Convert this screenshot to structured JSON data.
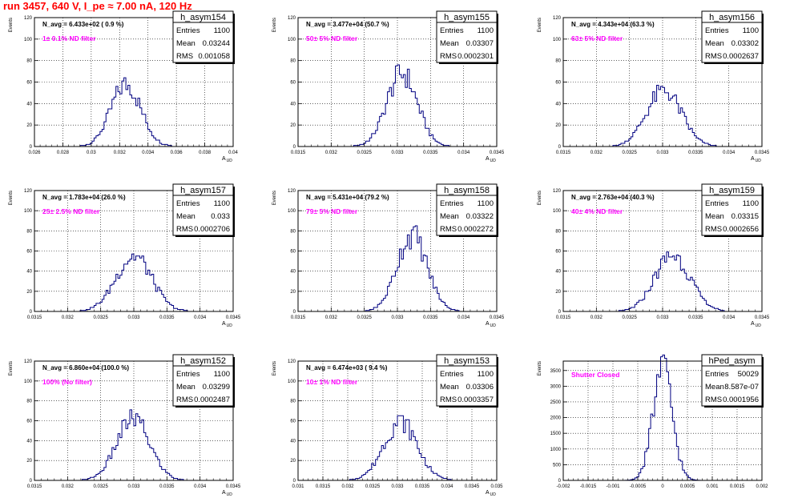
{
  "run_title": "run 3457,   640 V, I_pe ≈ 7.00 nA, 120 Hz",
  "colors": {
    "hist": "#000080",
    "title": "#ff0000",
    "note": "#ff00ff",
    "grid": "#000000"
  },
  "chart_data": [
    {
      "type": "histogram",
      "name": "h_asym154",
      "ylabel": "Events",
      "xlabel": "A_UD",
      "navg": "N_avg = 6.433e+02 ( 0.9 %)",
      "note": "1± 0.1% ND filter",
      "stats": {
        "entries": "1100",
        "mean": "0.03244",
        "rms": "0.001058"
      },
      "stats_labels": {
        "entries": "Entries",
        "mean": "Mean",
        "rms": "RMS"
      },
      "xlim": [
        0.026,
        0.04
      ],
      "ylim": [
        0,
        120
      ],
      "xticks": [
        0.026,
        0.028,
        0.03,
        0.032,
        0.034,
        0.036,
        0.038,
        0.04
      ],
      "xtick_labels": [
        "0.026",
        "0.028",
        "0.03",
        "0.032",
        "0.034",
        "0.036",
        "0.038",
        "0.04"
      ],
      "yticks": [
        0,
        20,
        40,
        60,
        80,
        100,
        120
      ],
      "ytick_labels": [
        "0",
        "20",
        "40",
        "60",
        "80",
        "100",
        "120"
      ],
      "mu": 0.03244,
      "sigma": 0.001058,
      "peak": 58
    },
    {
      "type": "histogram",
      "name": "h_asym155",
      "ylabel": "Events",
      "xlabel": "A_UD",
      "navg": "N_avg = 3.477e+04 (50.7 %)",
      "note": "50± 5% ND filter",
      "stats": {
        "entries": "1100",
        "mean": "0.03307",
        "rms": "0.0002301"
      },
      "stats_labels": {
        "entries": "Entries",
        "mean": "Mean",
        "rms": "RMS"
      },
      "xlim": [
        0.0315,
        0.0345
      ],
      "ylim": [
        0,
        120
      ],
      "xticks": [
        0.0315,
        0.032,
        0.0325,
        0.033,
        0.0335,
        0.034,
        0.0345
      ],
      "xtick_labels": [
        "0.0315",
        "0.032",
        "0.0325",
        "0.033",
        "0.0335",
        "0.034",
        "0.0345"
      ],
      "yticks": [
        0,
        20,
        40,
        60,
        80,
        100,
        120
      ],
      "ytick_labels": [
        "0",
        "20",
        "40",
        "60",
        "80",
        "100",
        "120"
      ],
      "mu": 0.03307,
      "sigma": 0.0002301,
      "peak": 68
    },
    {
      "type": "histogram",
      "name": "h_asym156",
      "ylabel": "Events",
      "xlabel": "A_UD",
      "navg": "N_avg = 4.343e+04 (63.3 %)",
      "note": "63± 5% ND filter",
      "stats": {
        "entries": "1100",
        "mean": "0.03302",
        "rms": "0.0002637"
      },
      "stats_labels": {
        "entries": "Entries",
        "mean": "Mean",
        "rms": "RMS"
      },
      "xlim": [
        0.0315,
        0.0345
      ],
      "ylim": [
        0,
        120
      ],
      "xticks": [
        0.0315,
        0.032,
        0.0325,
        0.033,
        0.0335,
        0.034,
        0.0345
      ],
      "xtick_labels": [
        "0.0315",
        "0.032",
        "0.0325",
        "0.033",
        "0.0335",
        "0.034",
        "0.0345"
      ],
      "yticks": [
        0,
        20,
        40,
        60,
        80,
        100,
        120
      ],
      "ytick_labels": [
        "0",
        "20",
        "40",
        "60",
        "80",
        "100",
        "120"
      ],
      "mu": 0.03302,
      "sigma": 0.0002637,
      "peak": 52
    },
    {
      "type": "histogram",
      "name": "h_asym157",
      "ylabel": "Events",
      "xlabel": "A_UD",
      "navg": "N_avg = 1.783e+04 (26.0 %)",
      "note": "25± 2.5% ND filter",
      "stats": {
        "entries": "1100",
        "mean": "0.033",
        "rms": "0.0002706"
      },
      "stats_labels": {
        "entries": "Entries",
        "mean": "Mean",
        "rms": "RMS"
      },
      "xlim": [
        0.0315,
        0.0345
      ],
      "ylim": [
        0,
        120
      ],
      "xticks": [
        0.0315,
        0.032,
        0.0325,
        0.033,
        0.0335,
        0.034,
        0.0345
      ],
      "xtick_labels": [
        "0.0315",
        "0.032",
        "0.0325",
        "0.033",
        "0.0335",
        "0.034",
        "0.0345"
      ],
      "yticks": [
        0,
        20,
        40,
        60,
        80,
        100,
        120
      ],
      "ytick_labels": [
        "0",
        "20",
        "40",
        "60",
        "80",
        "100",
        "120"
      ],
      "mu": 0.033,
      "sigma": 0.0002706,
      "peak": 55
    },
    {
      "type": "histogram",
      "name": "h_asym158",
      "ylabel": "Events",
      "xlabel": "A_UD",
      "navg": "N_avg = 5.431e+04 (79.2 %)",
      "note": "79± 5% ND filter",
      "stats": {
        "entries": "1100",
        "mean": "0.03322",
        "rms": "0.0002272"
      },
      "stats_labels": {
        "entries": "Entries",
        "mean": "Mean",
        "rms": "RMS"
      },
      "xlim": [
        0.0315,
        0.0345
      ],
      "ylim": [
        0,
        120
      ],
      "xticks": [
        0.0315,
        0.032,
        0.0325,
        0.033,
        0.0335,
        0.034,
        0.0345
      ],
      "xtick_labels": [
        "0.0315",
        "0.032",
        "0.0325",
        "0.033",
        "0.0335",
        "0.034",
        "0.0345"
      ],
      "yticks": [
        0,
        20,
        40,
        60,
        80,
        100,
        120
      ],
      "ytick_labels": [
        "0",
        "20",
        "40",
        "60",
        "80",
        "100",
        "120"
      ],
      "mu": 0.03322,
      "sigma": 0.0002272,
      "peak": 76
    },
    {
      "type": "histogram",
      "name": "h_asym159",
      "ylabel": "Events",
      "xlabel": "A_UD",
      "navg": "N_avg = 2.763e+04 (40.3 %)",
      "note": "40± 4% ND filter",
      "stats": {
        "entries": "1100",
        "mean": "0.03315",
        "rms": "0.0002656"
      },
      "stats_labels": {
        "entries": "Entries",
        "mean": "Mean",
        "rms": "RMS"
      },
      "xlim": [
        0.0315,
        0.0345
      ],
      "ylim": [
        0,
        120
      ],
      "xticks": [
        0.0315,
        0.032,
        0.0325,
        0.033,
        0.0335,
        0.034,
        0.0345
      ],
      "xtick_labels": [
        "0.0315",
        "0.032",
        "0.0325",
        "0.033",
        "0.0335",
        "0.034",
        "0.0345"
      ],
      "yticks": [
        0,
        20,
        40,
        60,
        80,
        100,
        120
      ],
      "ytick_labels": [
        "0",
        "20",
        "40",
        "60",
        "80",
        "100",
        "120"
      ],
      "mu": 0.03315,
      "sigma": 0.0002656,
      "peak": 56
    },
    {
      "type": "histogram",
      "name": "h_asym152",
      "ylabel": "Events",
      "xlabel": "A_UD",
      "navg": "N_avg = 6.860e+04 (100.0 %)",
      "note": "100% (No filter)",
      "stats": {
        "entries": "1100",
        "mean": "0.03299",
        "rms": "0.0002487"
      },
      "stats_labels": {
        "entries": "Entries",
        "mean": "Mean",
        "rms": "RMS"
      },
      "xlim": [
        0.0315,
        0.0345
      ],
      "ylim": [
        0,
        120
      ],
      "xticks": [
        0.0315,
        0.032,
        0.0325,
        0.033,
        0.0335,
        0.034,
        0.0345
      ],
      "xtick_labels": [
        "0.0315",
        "0.032",
        "0.0325",
        "0.033",
        "0.0335",
        "0.034",
        "0.0345"
      ],
      "yticks": [
        0,
        20,
        40,
        60,
        80,
        100,
        120
      ],
      "ytick_labels": [
        "0",
        "20",
        "40",
        "60",
        "80",
        "100",
        "120"
      ],
      "mu": 0.03299,
      "sigma": 0.0002487,
      "peak": 62
    },
    {
      "type": "histogram",
      "name": "h_asym153",
      "ylabel": "Events",
      "xlabel": "A_UD",
      "navg": "N_avg = 6.474e+03 ( 9.4 %)",
      "note": "10± 1% ND filter",
      "stats": {
        "entries": "1100",
        "mean": "0.03306",
        "rms": "0.0003357"
      },
      "stats_labels": {
        "entries": "Entries",
        "mean": "Mean",
        "rms": "RMS"
      },
      "xlim": [
        0.031,
        0.035
      ],
      "ylim": [
        0,
        120
      ],
      "xticks": [
        0.031,
        0.0315,
        0.032,
        0.0325,
        0.033,
        0.0335,
        0.034,
        0.0345,
        0.035
      ],
      "xtick_labels": [
        "0.031",
        "0.0315",
        "0.032",
        "0.0325",
        "0.033",
        "0.0335",
        "0.034",
        "0.0345",
        "0.035"
      ],
      "yticks": [
        0,
        20,
        40,
        60,
        80,
        100,
        120
      ],
      "ytick_labels": [
        "0",
        "20",
        "40",
        "60",
        "80",
        "100",
        "120"
      ],
      "mu": 0.03306,
      "sigma": 0.0003357,
      "peak": 59
    },
    {
      "type": "histogram",
      "name": "hPed_asym",
      "ylabel": "Events",
      "xlabel": "",
      "navg": "",
      "note": "Shutter Closed",
      "stats": {
        "entries": "50029",
        "mean": "8.587e-07",
        "rms": "0.0001956"
      },
      "stats_labels": {
        "entries": "Entries",
        "mean": "Mean",
        "rms": "RMS"
      },
      "xlim": [
        -0.002,
        0.002
      ],
      "ylim": [
        0,
        3800
      ],
      "xticks": [
        -0.002,
        -0.0015,
        -0.001,
        -0.0005,
        0,
        0.0005,
        0.001,
        0.0015,
        0.002
      ],
      "xtick_labels": [
        "-0.002",
        "-0.0015",
        "-0.001",
        "-0.0005",
        "0",
        "0.0005",
        "0.001",
        "0.0015",
        "0.002"
      ],
      "yticks": [
        0,
        500,
        1000,
        1500,
        2000,
        2500,
        3000,
        3500
      ],
      "ytick_labels": [
        "0",
        "500",
        "1000",
        "1500",
        "2000",
        "2500",
        "3000",
        "3500"
      ],
      "mu": 9e-07,
      "sigma": 0.0001956,
      "peak": 3560
    }
  ]
}
